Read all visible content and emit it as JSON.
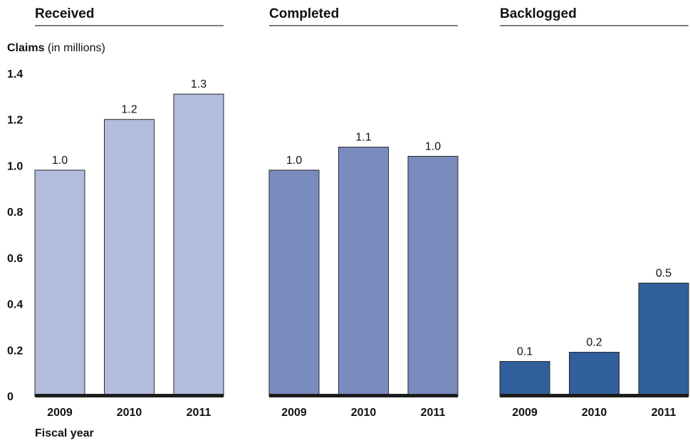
{
  "chart_data": {
    "type": "bar",
    "ylabel_bold": "Claims",
    "ylabel_rest": " (in millions)",
    "xlabel": "Fiscal year",
    "ylim": [
      0,
      1.4
    ],
    "yticks": [
      "0",
      "0.2",
      "0.4",
      "0.6",
      "0.8",
      "1.0",
      "1.2",
      "1.4"
    ],
    "categories": [
      "2009",
      "2010",
      "2011"
    ],
    "panels": [
      {
        "title": "Received",
        "color": "#b3bcdc",
        "values": [
          0.98,
          1.2,
          1.31
        ],
        "labels": [
          "1.0",
          "1.2",
          "1.3"
        ]
      },
      {
        "title": "Completed",
        "color": "#7a8bbe",
        "values": [
          0.98,
          1.08,
          1.04
        ],
        "labels": [
          "1.0",
          "1.1",
          "1.0"
        ]
      },
      {
        "title": "Backlogged",
        "color": "#315f9c",
        "values": [
          0.15,
          0.19,
          0.49
        ],
        "labels": [
          "0.1",
          "0.2",
          "0.5"
        ]
      }
    ]
  }
}
